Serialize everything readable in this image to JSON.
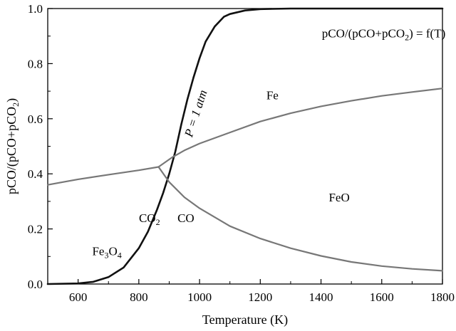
{
  "chart_data": {
    "type": "line",
    "xlabel": "Temperature (K)",
    "ylabel_parts": {
      "a": "pCO/(pCO+pCO",
      "sub": "2",
      "b": ")"
    },
    "xlim": [
      500,
      1800
    ],
    "ylim": [
      0,
      1.0
    ],
    "x_ticks": [
      600,
      800,
      1000,
      1200,
      1400,
      1600,
      1800
    ],
    "y_ticks": [
      0.0,
      0.2,
      0.4,
      0.6,
      0.8,
      1.0
    ],
    "y_tick_labels": [
      "0.0",
      "0.2",
      "0.4",
      "0.6",
      "0.8",
      "1.0"
    ],
    "grid": false,
    "legend": "none",
    "colors": {
      "boudouard": "#111111",
      "boundary": "#777777"
    },
    "series": [
      {
        "key": "boudouard",
        "x": [
          500,
          600,
          650,
          700,
          750,
          800,
          830,
          860,
          880,
          900,
          920,
          940,
          960,
          980,
          1000,
          1020,
          1050,
          1080,
          1100,
          1150,
          1200,
          1300,
          1400,
          1500,
          1600,
          1800
        ],
        "y": [
          0.0,
          0.002,
          0.008,
          0.025,
          0.06,
          0.13,
          0.19,
          0.27,
          0.33,
          0.4,
          0.48,
          0.58,
          0.67,
          0.75,
          0.82,
          0.88,
          0.935,
          0.97,
          0.98,
          0.993,
          0.998,
          1.0,
          1.0,
          1.0,
          1.0,
          1.0
        ]
      },
      {
        "key": "fe3o4-feo",
        "x": [
          500,
          600,
          700,
          800,
          865
        ],
        "y": [
          0.36,
          0.38,
          0.397,
          0.413,
          0.425
        ]
      },
      {
        "key": "fe3o4-fe",
        "x": [
          865,
          910,
          950,
          1000,
          1100,
          1200,
          1300,
          1400,
          1500,
          1600,
          1700,
          1800
        ],
        "y": [
          0.425,
          0.46,
          0.485,
          0.51,
          0.55,
          0.59,
          0.62,
          0.645,
          0.665,
          0.683,
          0.697,
          0.71
        ]
      },
      {
        "key": "feo-fe",
        "x": [
          865,
          900,
          950,
          1000,
          1100,
          1200,
          1300,
          1400,
          1500,
          1600,
          1700,
          1800
        ],
        "y": [
          0.425,
          0.37,
          0.315,
          0.275,
          0.21,
          0.165,
          0.13,
          0.102,
          0.08,
          0.065,
          0.055,
          0.048
        ]
      }
    ],
    "region_labels": {
      "fe": {
        "text": "Fe",
        "x": 1240,
        "y": 0.67
      },
      "feo": {
        "text": "FeO",
        "x": 1460,
        "y": 0.3
      },
      "co": {
        "text": "CO",
        "x": 955,
        "y": 0.225
      },
      "co2": {
        "main": "CO",
        "sub": "2",
        "x": 835,
        "y": 0.225
      },
      "fe3o4": {
        "a": "Fe",
        "s1": "3",
        "b": "O",
        "s2": "4",
        "x": 695,
        "y": 0.105
      }
    },
    "annotations": {
      "pressure": {
        "text": "P = 1 atm",
        "x": 1000,
        "y": 0.615
      },
      "equation": {
        "a": "pCO/(pCO+pCO",
        "sub": "2",
        "b": ") = f(T)",
        "x": 1810,
        "y": 0.895
      }
    }
  }
}
